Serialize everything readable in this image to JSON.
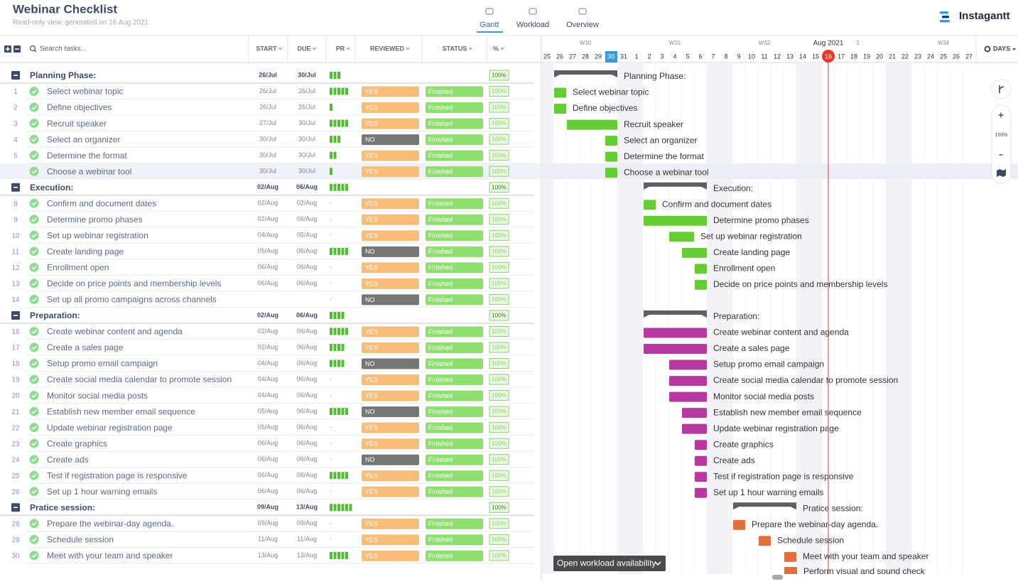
{
  "header": {
    "title": "Webinar Checklist",
    "subtitle": "Read-only view, generated on 16 Aug 2021",
    "tabs": [
      "Gantt",
      "Workload",
      "Overview"
    ],
    "brand": "Instagantt"
  },
  "table": {
    "search_placeholder": "Search tasks...",
    "columns": [
      "START",
      "DUE",
      "PR",
      "REVIEWED",
      "STATUS",
      "%"
    ],
    "tag_colors": {
      "YES": "#f8bd78",
      "NO": "#767676"
    },
    "rows": [
      {
        "group": true,
        "name": "Planning Phase:",
        "start": "26/Jul",
        "due": "30/Jul",
        "pr": 3,
        "pct": "100%",
        "color": "#66cc33"
      },
      {
        "num": 1,
        "name": "Select webinar topic",
        "start": "26/Jul",
        "due": "26/Jul",
        "pr": 5,
        "reviewed": "YES",
        "status": "Finished",
        "pct": "100%"
      },
      {
        "num": 2,
        "name": "Define objectives",
        "start": "26/Jul",
        "due": "26/Jul",
        "pr": 1,
        "reviewed": "YES",
        "status": "Finished",
        "pct": "100%"
      },
      {
        "num": 3,
        "name": "Recruit speaker",
        "start": "27/Jul",
        "due": "30/Jul",
        "pr": 5,
        "reviewed": "YES",
        "status": "Finished",
        "pct": "100%"
      },
      {
        "num": 4,
        "name": "Select an organizer",
        "start": "30/Jul",
        "due": "30/Jul",
        "pr": 3,
        "reviewed": "NO",
        "status": "Finished",
        "pct": "100%"
      },
      {
        "num": 5,
        "name": "Determine the format",
        "start": "30/Jul",
        "due": "30/Jul",
        "pr": 2,
        "reviewed": "YES",
        "status": "Finished",
        "pct": "100%"
      },
      {
        "num": null,
        "name": "Choose a webinar tool",
        "start": "30/Jul",
        "due": "30/Jul",
        "pr": 1,
        "reviewed": "YES",
        "status": "Finished",
        "pct": "100%"
      },
      {
        "group": true,
        "name": "Execution:",
        "start": "02/Aug",
        "due": "06/Aug",
        "pr": 5,
        "pct": "100%",
        "color": "#66cc33"
      },
      {
        "num": 8,
        "name": "Confirm and document dates",
        "start": "02/Aug",
        "due": "02/Aug",
        "pr": "-",
        "reviewed": "YES",
        "status": "Finished",
        "pct": "100%"
      },
      {
        "num": 9,
        "name": "Determine promo phases",
        "start": "02/Aug",
        "due": "06/Aug",
        "pr": "-",
        "reviewed": "YES",
        "status": "Finished",
        "pct": "100%"
      },
      {
        "num": 10,
        "name": "Set up webinar registration",
        "start": "04/Aug",
        "due": "05/Aug",
        "pr": "-",
        "reviewed": "YES",
        "status": "Finished",
        "pct": "100%"
      },
      {
        "num": 11,
        "name": "Create landing page",
        "start": "05/Aug",
        "due": "06/Aug",
        "pr": 5,
        "reviewed": "NO",
        "status": "Finished",
        "pct": "100%"
      },
      {
        "num": 12,
        "name": "Enrollment open",
        "start": "06/Aug",
        "due": "06/Aug",
        "pr": "-",
        "reviewed": "YES",
        "status": "Finished",
        "pct": "100%"
      },
      {
        "num": 13,
        "name": "Decide on price points and membership levels",
        "start": "06/Aug",
        "due": "06/Aug",
        "pr": "-",
        "reviewed": "YES",
        "status": "Finished",
        "pct": "100%"
      },
      {
        "num": 14,
        "name": "Set up all promo campaigns across channels",
        "start": null,
        "due": null,
        "pr": "-",
        "reviewed": "NO",
        "status": "Finished",
        "pct": "100%"
      },
      {
        "group": true,
        "name": "Preparation:",
        "start": "02/Aug",
        "due": "06/Aug",
        "pr": 4,
        "pct": "100%",
        "color": "#b5399f"
      },
      {
        "num": 16,
        "name": "Create webinar content and agenda",
        "start": "02/Aug",
        "due": "06/Aug",
        "pr": 5,
        "reviewed": "YES",
        "status": "Finished",
        "pct": "100%"
      },
      {
        "num": 17,
        "name": "Create a sales page",
        "start": "02/Aug",
        "due": "06/Aug",
        "pr": 4,
        "reviewed": "YES",
        "status": "Finished",
        "pct": "100%"
      },
      {
        "num": 18,
        "name": "Setup promo email campaign",
        "start": "04/Aug",
        "due": "06/Aug",
        "pr": 4,
        "reviewed": "NO",
        "status": "Finished",
        "pct": "100%"
      },
      {
        "num": 19,
        "name": "Create social media calendar to promote session",
        "start": "04/Aug",
        "due": "06/Aug",
        "pr": "-",
        "reviewed": "YES",
        "status": "Finished",
        "pct": "100%"
      },
      {
        "num": 20,
        "name": "Monitor social media posts",
        "start": "04/Aug",
        "due": "06/Aug",
        "pr": "-",
        "reviewed": "YES",
        "status": "Finished",
        "pct": "100%"
      },
      {
        "num": 21,
        "name": "Establish new member email sequence",
        "start": "05/Aug",
        "due": "06/Aug",
        "pr": 5,
        "reviewed": "NO",
        "status": "Finished",
        "pct": "100%"
      },
      {
        "num": 22,
        "name": "Update webinar registration page",
        "start": "05/Aug",
        "due": "06/Aug",
        "pr": "-",
        "reviewed": "YES",
        "status": "Finished",
        "pct": "100%"
      },
      {
        "num": 23,
        "name": "Create graphics",
        "start": "06/Aug",
        "due": "06/Aug",
        "pr": "-",
        "reviewed": "YES",
        "status": "Finished",
        "pct": "100%"
      },
      {
        "num": 24,
        "name": "Create ads",
        "start": "06/Aug",
        "due": "06/Aug",
        "pr": "-",
        "reviewed": "NO",
        "status": "Finished",
        "pct": "100%"
      },
      {
        "num": 25,
        "name": "Test if registration page is responsive",
        "start": "06/Aug",
        "due": "06/Aug",
        "pr": 5,
        "reviewed": "YES",
        "status": "Finished",
        "pct": "100%"
      },
      {
        "num": 26,
        "name": "Set up 1 hour warning emails",
        "start": "06/Aug",
        "due": "06/Aug",
        "pr": "-",
        "reviewed": "YES",
        "status": "Finished",
        "pct": "100%"
      },
      {
        "group": true,
        "name": "Pratice session:",
        "start": "09/Aug",
        "due": "13/Aug",
        "pr": 6,
        "pct": "100%",
        "color": "#e2703a"
      },
      {
        "num": 28,
        "name": "Prepare the webinar-day agenda.",
        "start": "09/Aug",
        "due": "09/Aug",
        "pr": "-",
        "reviewed": "YES",
        "status": "Finished",
        "pct": "100%"
      },
      {
        "num": 29,
        "name": "Schedule session",
        "start": "11/Aug",
        "due": "11/Aug",
        "pr": "-",
        "reviewed": "YES",
        "status": "Finished",
        "pct": "100%"
      },
      {
        "num": 30,
        "name": "Meet with your team and speaker",
        "start": "13/Aug",
        "due": "13/Aug",
        "pr": 5,
        "reviewed": "YES",
        "status": "Finished",
        "pct": "100%"
      }
    ]
  },
  "timeline": {
    "month": "Aug 2021",
    "weeks": [
      "W30",
      "W31",
      "W32",
      "3",
      "W34"
    ],
    "days": [
      25,
      26,
      27,
      28,
      29,
      30,
      31,
      1,
      2,
      3,
      4,
      5,
      6,
      7,
      8,
      9,
      10,
      11,
      12,
      13,
      14,
      15,
      16,
      17,
      18,
      19,
      20,
      21,
      22,
      23,
      24,
      25,
      26,
      27
    ],
    "scale_button": "DAYS",
    "zoom": "100%",
    "workload_button": "Open workload availability",
    "cutoff_task": "Perform visual and sound check"
  }
}
